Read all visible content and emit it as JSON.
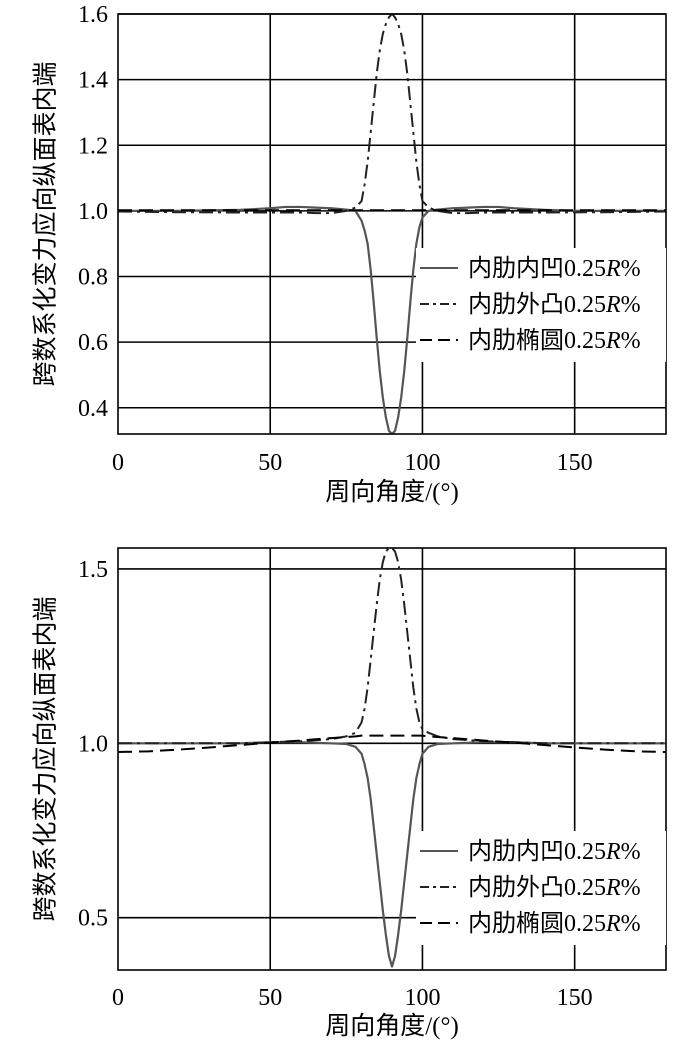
{
  "chart_data": [
    {
      "type": "line",
      "xlabel": "周向角度/(°)",
      "ylabel": "跨数系化变力应向纵面表内端",
      "xlim": [
        0,
        180
      ],
      "ylim": [
        0.32,
        1.6
      ],
      "xticks": [
        0,
        50,
        100,
        150
      ],
      "yticks": [
        0.4,
        0.6,
        0.8,
        1.0,
        1.2,
        1.4,
        1.6
      ],
      "ytick_labels": [
        "0.4",
        "0.6",
        "0.8",
        "1.0",
        "1.2",
        "1.4",
        "1.6"
      ],
      "grid": true,
      "legend_position": "center-right",
      "series": [
        {
          "name": "内肋内凹0.25R%",
          "style": "solid",
          "color": "#555555",
          "x": [
            0,
            20,
            40,
            50,
            55,
            60,
            65,
            70,
            75,
            78,
            80,
            81,
            82,
            83,
            84,
            85,
            86,
            87,
            88,
            89,
            90,
            91,
            92,
            93,
            94,
            95,
            96,
            97,
            98,
            99,
            100,
            102,
            105,
            110,
            115,
            120,
            125,
            130,
            140,
            150,
            160,
            180
          ],
          "y": [
            1.0,
            1.0,
            1.003,
            1.008,
            1.012,
            1.012,
            1.01,
            1.008,
            1.004,
            1.0,
            0.97,
            0.94,
            0.9,
            0.82,
            0.72,
            0.61,
            0.51,
            0.43,
            0.37,
            0.33,
            0.32,
            0.33,
            0.37,
            0.43,
            0.51,
            0.61,
            0.72,
            0.82,
            0.9,
            0.95,
            0.98,
            1.0,
            1.004,
            1.008,
            1.01,
            1.012,
            1.012,
            1.008,
            1.003,
            1.0,
            1.0,
            1.0
          ]
        },
        {
          "name": "内肋外凸0.25R%",
          "style": "dashdot",
          "color": "#222222",
          "x": [
            0,
            20,
            40,
            50,
            60,
            65,
            70,
            75,
            78,
            80,
            81,
            82,
            83,
            84,
            85,
            86,
            87,
            88,
            89,
            90,
            91,
            92,
            93,
            94,
            95,
            96,
            97,
            98,
            99,
            100,
            102,
            105,
            110,
            115,
            120,
            140,
            160,
            180
          ],
          "y": [
            0.998,
            0.996,
            0.995,
            0.995,
            0.995,
            0.993,
            0.993,
            1.0,
            1.01,
            1.03,
            1.08,
            1.15,
            1.24,
            1.33,
            1.42,
            1.49,
            1.54,
            1.57,
            1.59,
            1.6,
            1.59,
            1.57,
            1.54,
            1.49,
            1.42,
            1.33,
            1.24,
            1.15,
            1.08,
            1.03,
            1.01,
            1.0,
            0.993,
            0.993,
            0.995,
            0.995,
            0.996,
            0.998
          ]
        },
        {
          "name": "内肋椭圆0.25R%",
          "style": "dashed",
          "color": "#000000",
          "x": [
            0,
            180
          ],
          "y": [
            1.002,
            1.002
          ]
        }
      ],
      "legend": [
        "内肋内凹0.25R%",
        "内肋外凸0.25R%",
        "内肋椭圆0.25R%"
      ]
    },
    {
      "type": "line",
      "xlabel": "周向角度/(°)",
      "ylabel": "跨数系化变力应向纵面表内端",
      "xlim": [
        0,
        180
      ],
      "ylim": [
        0.35,
        1.56
      ],
      "xticks": [
        0,
        50,
        100,
        150
      ],
      "yticks": [
        0.5,
        1.0,
        1.5
      ],
      "ytick_labels": [
        "0.5",
        "1.0",
        "1.5"
      ],
      "grid": true,
      "legend_position": "bottom-right",
      "series": [
        {
          "name": "内肋内凹0.25R%",
          "style": "solid",
          "color": "#555555",
          "x": [
            0,
            20,
            40,
            50,
            60,
            70,
            75,
            78,
            80,
            81,
            82,
            83,
            84,
            85,
            86,
            87,
            88,
            89,
            90,
            91,
            92,
            93,
            94,
            95,
            96,
            97,
            98,
            99,
            100,
            102,
            105,
            110,
            120,
            130,
            140,
            160,
            180
          ],
          "y": [
            1.0,
            1.0,
            1.0,
            1.003,
            1.003,
            1.0,
            0.998,
            0.99,
            0.97,
            0.94,
            0.9,
            0.84,
            0.76,
            0.68,
            0.6,
            0.52,
            0.45,
            0.39,
            0.36,
            0.39,
            0.45,
            0.52,
            0.6,
            0.68,
            0.76,
            0.84,
            0.9,
            0.94,
            0.97,
            0.99,
            0.998,
            1.0,
            1.003,
            1.003,
            1.0,
            1.0,
            1.0
          ]
        },
        {
          "name": "内肋外凸0.25R%",
          "style": "dashdot",
          "color": "#222222",
          "x": [
            0,
            20,
            40,
            50,
            60,
            70,
            75,
            78,
            80,
            81,
            82,
            83,
            84,
            85,
            86,
            87,
            88,
            89,
            90,
            91,
            92,
            93,
            94,
            95,
            96,
            97,
            98,
            99,
            100,
            102,
            105,
            110,
            120,
            130,
            140,
            160,
            180
          ],
          "y": [
            1.0,
            1.0,
            1.0,
            1.003,
            1.006,
            1.012,
            1.02,
            1.03,
            1.06,
            1.1,
            1.16,
            1.24,
            1.32,
            1.4,
            1.47,
            1.52,
            1.55,
            1.56,
            1.56,
            1.55,
            1.52,
            1.47,
            1.4,
            1.32,
            1.24,
            1.16,
            1.1,
            1.06,
            1.04,
            1.03,
            1.02,
            1.012,
            1.006,
            1.003,
            1.0,
            1.0,
            1.0
          ]
        },
        {
          "name": "内肋椭圆0.25R%",
          "style": "dashed",
          "color": "#000000",
          "x": [
            0,
            10,
            20,
            30,
            40,
            50,
            60,
            70,
            78,
            80,
            85,
            90,
            95,
            100,
            102,
            110,
            120,
            130,
            140,
            150,
            160,
            170,
            180
          ],
          "y": [
            0.975,
            0.977,
            0.982,
            0.988,
            0.995,
            1.002,
            1.008,
            1.015,
            1.02,
            1.022,
            1.022,
            1.022,
            1.022,
            1.022,
            1.02,
            1.015,
            1.008,
            1.002,
            0.995,
            0.988,
            0.982,
            0.977,
            0.975
          ]
        }
      ],
      "legend": [
        "内肋内凹0.25R%",
        "内肋外凸0.25R%",
        "内肋椭圆0.25R%"
      ]
    }
  ]
}
